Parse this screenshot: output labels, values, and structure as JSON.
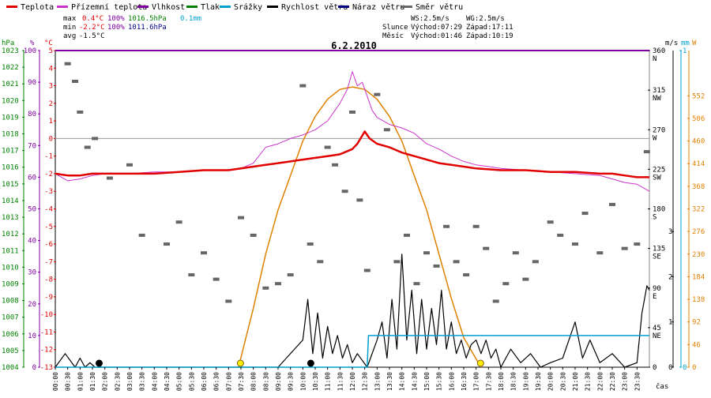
{
  "legend": {
    "temperature": "Teplota",
    "feels_like": "Přízemní teplota",
    "humidity": "Vlhkost",
    "pressure": "Tlak",
    "rain": "Srážky",
    "wind_speed": "Rychlost větru",
    "wind_gust": "Náraz větru",
    "wind_dir": "Směr větru"
  },
  "stats": {
    "max_label": "max",
    "max_temp": "0.4°C",
    "max_hum": "100%",
    "max_press": "1016.5hPa",
    "rain_total": "0.1mm",
    "min_label": "min",
    "min_temp": "-2.2°C",
    "min_hum": "100%",
    "min_press": "1011.6hPa",
    "avg_label": "avg",
    "avg_temp": "-1.5°C",
    "ws": "WS:2.5m/s",
    "wg": "WG:2.5m/s",
    "sun_label": "Slunce",
    "sunrise": "Východ:07:29",
    "sunset": "Západ:17:11",
    "moon_label": "Měsíc",
    "moonrise": "Východ:01:46",
    "moonset": "Západ:10:19"
  },
  "units": {
    "hpa": "hPa",
    "pct": "%",
    "degc": "°C",
    "ms": "m/s",
    "mm": "mm",
    "w": "W",
    "cas": "čas"
  },
  "colors": {
    "temperature": "#e00000",
    "feels_like": "#cc33cc",
    "humidity": "#8000a0",
    "pressure": "#008000",
    "rain": "#00a0d0",
    "wind_speed": "#000000",
    "wind_gust": "#000080",
    "wind_dir": "#666666",
    "solar": "#e08000"
  },
  "chart_data": {
    "type": "line",
    "title": "6.2.2010",
    "x_ticks": [
      "00:00",
      "00:30",
      "01:00",
      "01:30",
      "02:00",
      "02:30",
      "03:00",
      "03:30",
      "04:00",
      "04:30",
      "05:00",
      "05:30",
      "06:00",
      "06:30",
      "07:00",
      "07:30",
      "08:00",
      "08:30",
      "09:00",
      "09:30",
      "10:00",
      "10:30",
      "11:00",
      "11:30",
      "12:00",
      "12:30",
      "13:00",
      "13:30",
      "14:00",
      "14:30",
      "15:00",
      "15:30",
      "16:00",
      "16:30",
      "17:00",
      "17:30",
      "18:00",
      "18:30",
      "19:00",
      "19:30",
      "20:00",
      "20:30",
      "21:00",
      "21:30",
      "22:00",
      "22:30",
      "23:00",
      "23:30"
    ],
    "axes": {
      "pressure_hpa": {
        "range": [
          1004,
          1023
        ],
        "ticks": [
          1023,
          1022,
          1021,
          1020,
          1019,
          1018,
          1017,
          1016,
          1015,
          1014,
          1013,
          1012,
          1011,
          1010,
          1009,
          1008,
          1007,
          1006,
          1005,
          1004
        ]
      },
      "humidity_pct": {
        "range": [
          0,
          100
        ],
        "ticks": [
          100,
          90,
          80,
          70,
          60,
          50,
          40,
          30,
          20,
          10,
          0
        ]
      },
      "temperature_c": {
        "range": [
          -13,
          5
        ],
        "ticks": [
          5,
          4,
          3,
          2,
          1,
          0,
          -1,
          -2,
          -3,
          -4,
          -5,
          -6,
          -7,
          -8,
          -9,
          -10,
          -11,
          -12,
          -13
        ]
      },
      "wind_dir_deg": {
        "range": [
          0,
          360
        ],
        "ticks": [
          360,
          315,
          270,
          225,
          180,
          135,
          90,
          45,
          0
        ],
        "labels": [
          "N",
          "NW",
          "W",
          "SW",
          "S",
          "SE",
          "E",
          "NE",
          ""
        ]
      },
      "wind_ms": {
        "range": [
          0,
          7
        ],
        "ticks": [
          3,
          2,
          1,
          0
        ]
      },
      "rain_mm": {
        "range": [
          0,
          1
        ],
        "ticks": [
          1,
          0
        ]
      },
      "solar_w": {
        "range": [
          0,
          644
        ],
        "ticks": [
          552,
          506,
          460,
          414,
          368,
          322,
          276,
          230,
          184,
          138,
          92,
          46,
          0
        ]
      }
    },
    "series": [
      {
        "name": "Teplota",
        "unit": "°C",
        "x": [
          0,
          0.5,
          1,
          1.5,
          2,
          3,
          4,
          5,
          6,
          7,
          7.5,
          8,
          8.5,
          9,
          9.5,
          10,
          10.5,
          11,
          11.5,
          12,
          12.2,
          12.5,
          12.7,
          13,
          13.5,
          14,
          14.5,
          15,
          15.5,
          16,
          16.5,
          17,
          18,
          19,
          20,
          21,
          22,
          22.5,
          23,
          23.5,
          24
        ],
        "values": [
          -2.0,
          -2.1,
          -2.1,
          -2.0,
          -2.0,
          -2.0,
          -2.0,
          -1.9,
          -1.8,
          -1.8,
          -1.7,
          -1.6,
          -1.5,
          -1.4,
          -1.3,
          -1.2,
          -1.1,
          -1.0,
          -0.9,
          -0.6,
          -0.3,
          0.4,
          0.0,
          -0.3,
          -0.5,
          -0.8,
          -1.0,
          -1.2,
          -1.4,
          -1.5,
          -1.6,
          -1.7,
          -1.8,
          -1.8,
          -1.9,
          -1.9,
          -2.0,
          -2.0,
          -2.1,
          -2.2,
          -2.2
        ]
      },
      {
        "name": "Přízemní teplota",
        "unit": "°C",
        "x": [
          0,
          0.5,
          1,
          1.5,
          2,
          3,
          4,
          5,
          6,
          7,
          7.5,
          8,
          8.5,
          9,
          9.5,
          10,
          10.5,
          11,
          11.5,
          11.8,
          12,
          12.2,
          12.4,
          12.6,
          12.8,
          13,
          13.5,
          14,
          14.5,
          15,
          15.5,
          16,
          16.5,
          17,
          18,
          19,
          20,
          21,
          22,
          22.5,
          23,
          23.5,
          24
        ],
        "values": [
          -2.0,
          -2.4,
          -2.3,
          -2.1,
          -2.0,
          -2.0,
          -1.9,
          -1.9,
          -1.8,
          -1.8,
          -1.7,
          -1.4,
          -0.5,
          -0.3,
          0.0,
          0.2,
          0.5,
          1.0,
          2.0,
          2.8,
          3.8,
          3.0,
          3.2,
          2.4,
          1.6,
          1.2,
          0.8,
          0.6,
          0.3,
          -0.3,
          -0.6,
          -1.0,
          -1.3,
          -1.5,
          -1.7,
          -1.8,
          -1.9,
          -2.0,
          -2.1,
          -2.3,
          -2.5,
          -2.6,
          -3.0
        ]
      },
      {
        "name": "Vlhkost",
        "unit": "%",
        "x": [
          0,
          24
        ],
        "values": [
          100,
          100
        ]
      },
      {
        "name": "Rychlost větru",
        "unit": "m/s",
        "x": [
          0,
          0.4,
          0.8,
          1.0,
          1.2,
          1.4,
          1.6,
          2.0,
          3,
          4,
          5,
          6,
          7,
          8,
          9,
          10.0,
          10.2,
          10.4,
          10.6,
          10.8,
          11.0,
          11.2,
          11.4,
          11.6,
          11.8,
          12.0,
          12.2,
          12.6,
          13.0,
          13.2,
          13.4,
          13.6,
          13.8,
          14.0,
          14.2,
          14.4,
          14.6,
          14.8,
          15.0,
          15.2,
          15.4,
          15.6,
          15.8,
          16.0,
          16.2,
          16.4,
          16.6,
          16.8,
          17.0,
          17.2,
          17.4,
          17.6,
          17.8,
          18.0,
          18.4,
          18.8,
          19.2,
          19.6,
          20,
          20.5,
          21.0,
          21.3,
          21.6,
          22,
          22.5,
          23,
          23.5,
          23.7,
          23.9,
          24
        ],
        "values": [
          0,
          0.3,
          0,
          0.2,
          0,
          0.1,
          0,
          0,
          0,
          0,
          0,
          0,
          0,
          0,
          0,
          0.6,
          1.5,
          0.3,
          1.2,
          0.2,
          0.9,
          0.3,
          0.7,
          0.2,
          0.5,
          0.1,
          0.3,
          0,
          0.6,
          1.0,
          0.2,
          1.5,
          0.4,
          2.5,
          0.6,
          1.7,
          0.3,
          1.5,
          0.4,
          1.3,
          0.5,
          1.7,
          0.4,
          1.0,
          0.3,
          0.6,
          0.2,
          0.5,
          0.6,
          0.3,
          0.6,
          0.2,
          0.4,
          0,
          0.4,
          0.1,
          0.3,
          0,
          0.1,
          0.2,
          1.0,
          0.2,
          0.6,
          0.1,
          0.3,
          0,
          0.1,
          1.2,
          1.8,
          1.7
        ]
      },
      {
        "name": "Srážky",
        "unit": "mm",
        "x": [
          0,
          12.6,
          12.65,
          24
        ],
        "values": [
          0,
          0,
          0.1,
          0.1
        ]
      },
      {
        "name": "Směr větru",
        "unit": "°",
        "points": [
          [
            0.5,
            345
          ],
          [
            0.8,
            325
          ],
          [
            1.0,
            290
          ],
          [
            1.3,
            250
          ],
          [
            1.6,
            260
          ],
          [
            2.2,
            215
          ],
          [
            3,
            230
          ],
          [
            3.5,
            150
          ],
          [
            4.5,
            140
          ],
          [
            5,
            165
          ],
          [
            5.5,
            105
          ],
          [
            6,
            130
          ],
          [
            6.5,
            100
          ],
          [
            7,
            75
          ],
          [
            7.5,
            170
          ],
          [
            8,
            150
          ],
          [
            8.5,
            90
          ],
          [
            9,
            95
          ],
          [
            9.5,
            105
          ],
          [
            10,
            320
          ],
          [
            10.3,
            140
          ],
          [
            10.7,
            120
          ],
          [
            11,
            250
          ],
          [
            11.3,
            230
          ],
          [
            11.7,
            200
          ],
          [
            12,
            290
          ],
          [
            12.3,
            190
          ],
          [
            12.6,
            110
          ],
          [
            13,
            310
          ],
          [
            13.4,
            270
          ],
          [
            13.8,
            120
          ],
          [
            14.2,
            150
          ],
          [
            14.6,
            95
          ],
          [
            15,
            130
          ],
          [
            15.4,
            115
          ],
          [
            15.8,
            160
          ],
          [
            16.2,
            120
          ],
          [
            16.6,
            105
          ],
          [
            17,
            160
          ],
          [
            17.4,
            135
          ],
          [
            17.8,
            75
          ],
          [
            18.2,
            95
          ],
          [
            18.6,
            130
          ],
          [
            19,
            100
          ],
          [
            19.4,
            120
          ],
          [
            20,
            165
          ],
          [
            20.4,
            150
          ],
          [
            21,
            140
          ],
          [
            21.4,
            175
          ],
          [
            22,
            130
          ],
          [
            22.5,
            185
          ],
          [
            23,
            135
          ],
          [
            23.5,
            140
          ],
          [
            23.9,
            245
          ]
        ]
      },
      {
        "name": "Solar",
        "unit": "W",
        "x": [
          7.4,
          8,
          8.5,
          9,
          9.5,
          10,
          10.5,
          11,
          11.5,
          12,
          12.5,
          13,
          13.5,
          14,
          14.5,
          15,
          15.5,
          16,
          16.5,
          17.2
        ],
        "values": [
          0,
          120,
          230,
          320,
          390,
          460,
          510,
          545,
          565,
          570,
          565,
          545,
          510,
          460,
          390,
          320,
          230,
          140,
          60,
          0
        ]
      }
    ],
    "markers": {
      "sunrise_h": 7.48,
      "sunset_h": 17.18,
      "moonrise_h": 1.77,
      "moonset_h": 10.32
    },
    "grid": false
  }
}
